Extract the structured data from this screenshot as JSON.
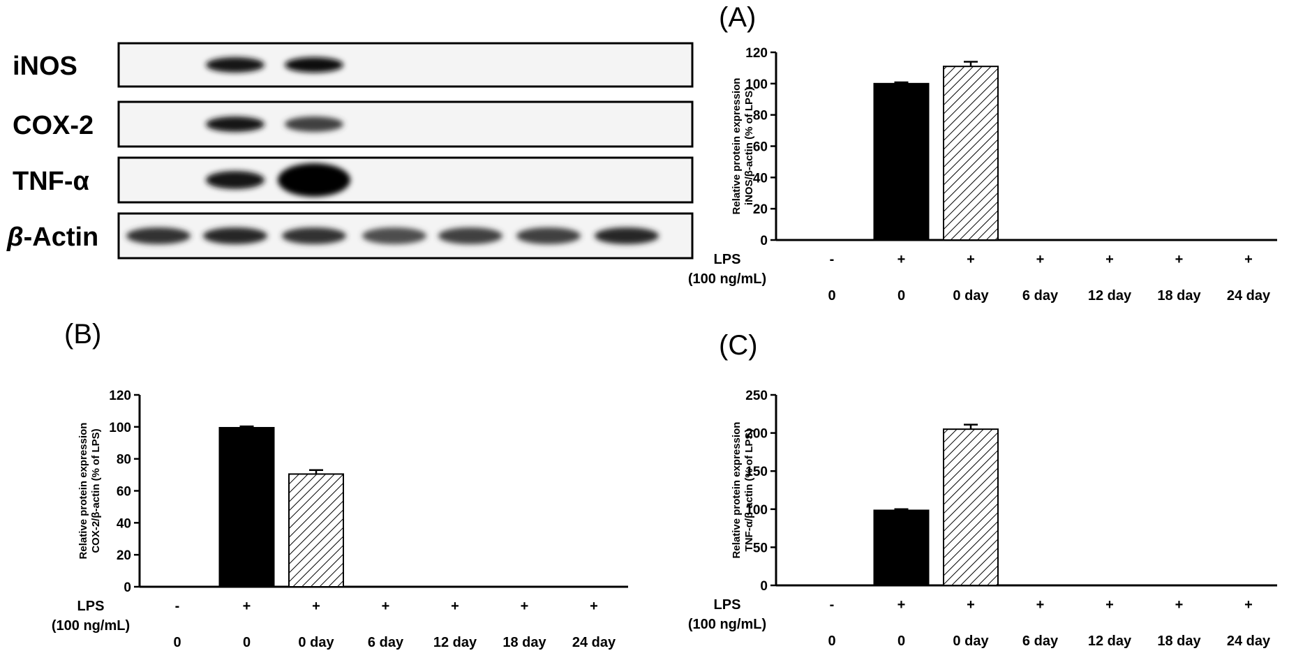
{
  "blot": {
    "rows": [
      {
        "label": "iNOS",
        "intensities": [
          0,
          0.9,
          0.95,
          0,
          0,
          0,
          0
        ]
      },
      {
        "label": "COX-2",
        "intensities": [
          0,
          0.9,
          0.75,
          0,
          0,
          0,
          0
        ]
      },
      {
        "label": "TNF-α",
        "intensities": [
          0,
          0.9,
          1.0,
          0,
          0,
          0,
          0
        ]
      },
      {
        "label_prefix": "β",
        "label": "-Actin",
        "intensities": [
          0.8,
          0.85,
          0.8,
          0.7,
          0.75,
          0.75,
          0.85
        ]
      }
    ]
  },
  "conditions": {
    "lps_label": "LPS",
    "lps_dose": "(100 ng/mL)",
    "lps_signs": [
      "-",
      "+",
      "+",
      "+",
      "+",
      "+",
      "+"
    ]
  },
  "chart_data": [
    {
      "panel": "(A)",
      "type": "bar",
      "categories": [
        "0",
        "0",
        "0 day",
        "6 day",
        "12 day",
        "18 day",
        "24 day"
      ],
      "values": [
        0,
        100,
        111,
        0,
        0,
        0,
        0
      ],
      "errors": [
        0,
        0.8,
        3,
        0,
        0,
        0,
        0
      ],
      "ylabel_line1": "Relative protein expression",
      "ylabel_line2": "iNOS/β-actin (% of LPS)",
      "ylim": [
        0,
        120
      ],
      "yticks": [
        0,
        20,
        40,
        60,
        80,
        100,
        120
      ],
      "fill": [
        "solid",
        "solid",
        "hatch",
        "solid",
        "solid",
        "solid",
        "solid"
      ]
    },
    {
      "panel": "(B)",
      "type": "bar",
      "categories": [
        "0",
        "0",
        "0 day",
        "6 day",
        "12 day",
        "18 day",
        "24 day"
      ],
      "values": [
        0,
        99.5,
        70.5,
        0,
        0,
        0,
        0
      ],
      "errors": [
        0,
        0.8,
        2.5,
        0,
        0,
        0,
        0
      ],
      "ylabel_line1": "Relative protein expression",
      "ylabel_line2": "COX-2/β-actin (% of LPS)",
      "ylim": [
        0,
        120
      ],
      "yticks": [
        0,
        20,
        40,
        60,
        80,
        100,
        120
      ],
      "fill": [
        "solid",
        "solid",
        "hatch",
        "solid",
        "solid",
        "solid",
        "solid"
      ]
    },
    {
      "panel": "(C)",
      "type": "bar",
      "categories": [
        "0",
        "0",
        "0 day",
        "6 day",
        "12 day",
        "18 day",
        "24 day"
      ],
      "values": [
        0,
        98.5,
        205,
        0,
        0,
        0,
        0
      ],
      "errors": [
        0,
        1.5,
        6,
        0,
        0,
        0,
        0
      ],
      "ylabel_line1": "Relative protein expression",
      "ylabel_line2": "TNF-α/β-actin (% of LPS)",
      "ylim": [
        0,
        250
      ],
      "yticks": [
        0,
        50,
        100,
        150,
        200,
        250
      ],
      "fill": [
        "solid",
        "solid",
        "hatch",
        "solid",
        "solid",
        "solid",
        "solid"
      ]
    }
  ]
}
